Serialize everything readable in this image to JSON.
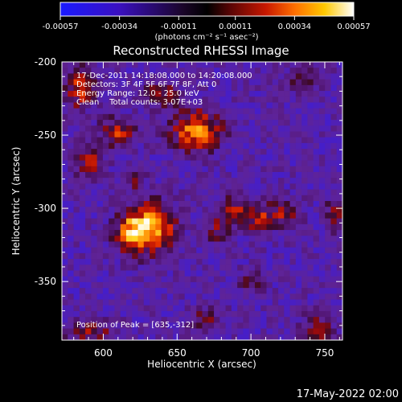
{
  "colorbar": {
    "tick_labels": [
      "-0.00057",
      "-0.00034",
      "-0.00011",
      "0.00011",
      "0.00034",
      "0.00057"
    ],
    "ticks": [
      -0.00057,
      -0.00034,
      -0.00011,
      0.00011,
      0.00034,
      0.00057
    ],
    "range": [
      -0.00057,
      0.00057
    ],
    "units_label": "(photons cm⁻² s⁻¹ asec⁻²)",
    "colors": [
      "#1a1aff",
      "#4a0a8a",
      "#000000",
      "#8a0a0a",
      "#e02000",
      "#ff8000",
      "#ffd000",
      "#ffffff"
    ]
  },
  "title": "Reconstructed RHESSI Image",
  "info_lines": [
    "17-Dec-2011 14:18:08.000 to 14:20:08.000",
    "Detectors: 3F 4F 5F 6F 7F 8F, Att 0",
    "Energy Range: 12.0 - 25.0 keV",
    "Clean    Total counts: 3.07E+03"
  ],
  "peak_text": "Position of Peak = [635,-312]",
  "footer_date": "17-May-2022 02:00",
  "chart_data": {
    "type": "heatmap",
    "title": "Reconstructed RHESSI Image",
    "xlabel": "Heliocentric X (arcsec)",
    "ylabel": "Heliocentric Y (arcsec)",
    "xlim": [
      572,
      762
    ],
    "ylim": [
      -390,
      -200
    ],
    "x_ticks": [
      600,
      650,
      700,
      750
    ],
    "x_tick_labels": [
      "600",
      "650",
      "700",
      "750"
    ],
    "y_ticks": [
      -200,
      -250,
      -300,
      -350
    ],
    "y_tick_labels": [
      "-200",
      "-250",
      "-300",
      "-350"
    ],
    "value_range": [
      -0.00057,
      0.00057
    ],
    "peak": [
      635,
      -312
    ],
    "sources": [
      {
        "x": 663,
        "y": -247,
        "sx": 12,
        "sy": 10,
        "amp": 0.00052
      },
      {
        "x": 632,
        "y": -313,
        "sx": 12,
        "sy": 12,
        "amp": 0.00057
      },
      {
        "x": 618,
        "y": -318,
        "sx": 7,
        "sy": 9,
        "amp": 0.00036
      },
      {
        "x": 610,
        "y": -248,
        "sx": 9,
        "sy": 7,
        "amp": 0.00036
      },
      {
        "x": 590,
        "y": -268,
        "sx": 7,
        "sy": 8,
        "amp": 0.00034
      },
      {
        "x": 584,
        "y": -218,
        "sx": 8,
        "sy": 10,
        "amp": 0.00038
      },
      {
        "x": 640,
        "y": -222,
        "sx": 9,
        "sy": 7,
        "amp": 0.00028
      },
      {
        "x": 690,
        "y": -302,
        "sx": 6,
        "sy": 8,
        "amp": 0.00034
      },
      {
        "x": 706,
        "y": -308,
        "sx": 6,
        "sy": 8,
        "amp": 0.00036
      },
      {
        "x": 723,
        "y": -303,
        "sx": 8,
        "sy": 7,
        "amp": 0.0003
      },
      {
        "x": 677,
        "y": -313,
        "sx": 5,
        "sy": 9,
        "amp": 0.00028
      },
      {
        "x": 592,
        "y": -386,
        "sx": 12,
        "sy": 7,
        "amp": 0.00028
      },
      {
        "x": 745,
        "y": -383,
        "sx": 9,
        "sy": 8,
        "amp": 0.00026
      },
      {
        "x": 735,
        "y": -212,
        "sx": 9,
        "sy": 7,
        "amp": 0.00022
      },
      {
        "x": 758,
        "y": -302,
        "sx": 5,
        "sy": 10,
        "amp": 0.00024
      },
      {
        "x": 620,
        "y": -280,
        "sx": 6,
        "sy": 6,
        "amp": 0.00022
      },
      {
        "x": 700,
        "y": -350,
        "sx": 7,
        "sy": 6,
        "amp": 0.0002
      },
      {
        "x": 670,
        "y": -375,
        "sx": 9,
        "sy": 6,
        "amp": 0.00022
      }
    ]
  }
}
